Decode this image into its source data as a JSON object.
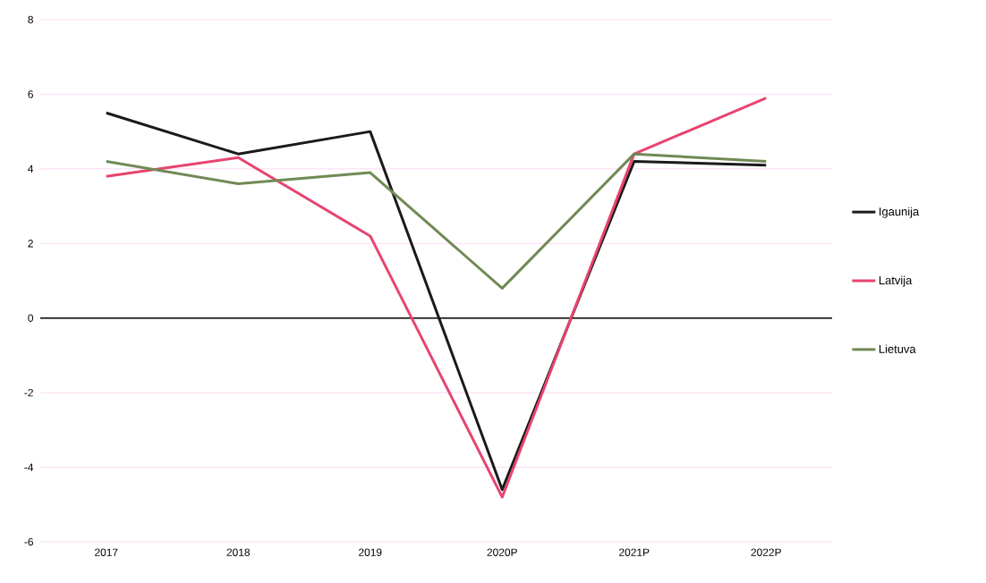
{
  "chart_data": {
    "type": "line",
    "categories": [
      "2017",
      "2018",
      "2019",
      "2020P",
      "2021P",
      "2022P"
    ],
    "series": [
      {
        "name": "Igaunija",
        "color": "#1a1a1a",
        "values": [
          5.5,
          4.4,
          5.0,
          -4.6,
          4.2,
          4.1
        ]
      },
      {
        "name": "Latvija",
        "color": "#e8436f",
        "values": [
          3.8,
          4.3,
          2.2,
          -4.8,
          4.4,
          5.9
        ]
      },
      {
        "name": "Lietuva",
        "color": "#708a55",
        "values": [
          4.2,
          3.6,
          3.9,
          0.8,
          4.4,
          4.2
        ]
      }
    ],
    "ylim": [
      -6,
      8
    ],
    "yticks": [
      -6,
      -4,
      -2,
      0,
      2,
      4,
      6,
      8
    ],
    "grid": "y",
    "legend": "right",
    "marker": "none",
    "line_style": "solid"
  }
}
